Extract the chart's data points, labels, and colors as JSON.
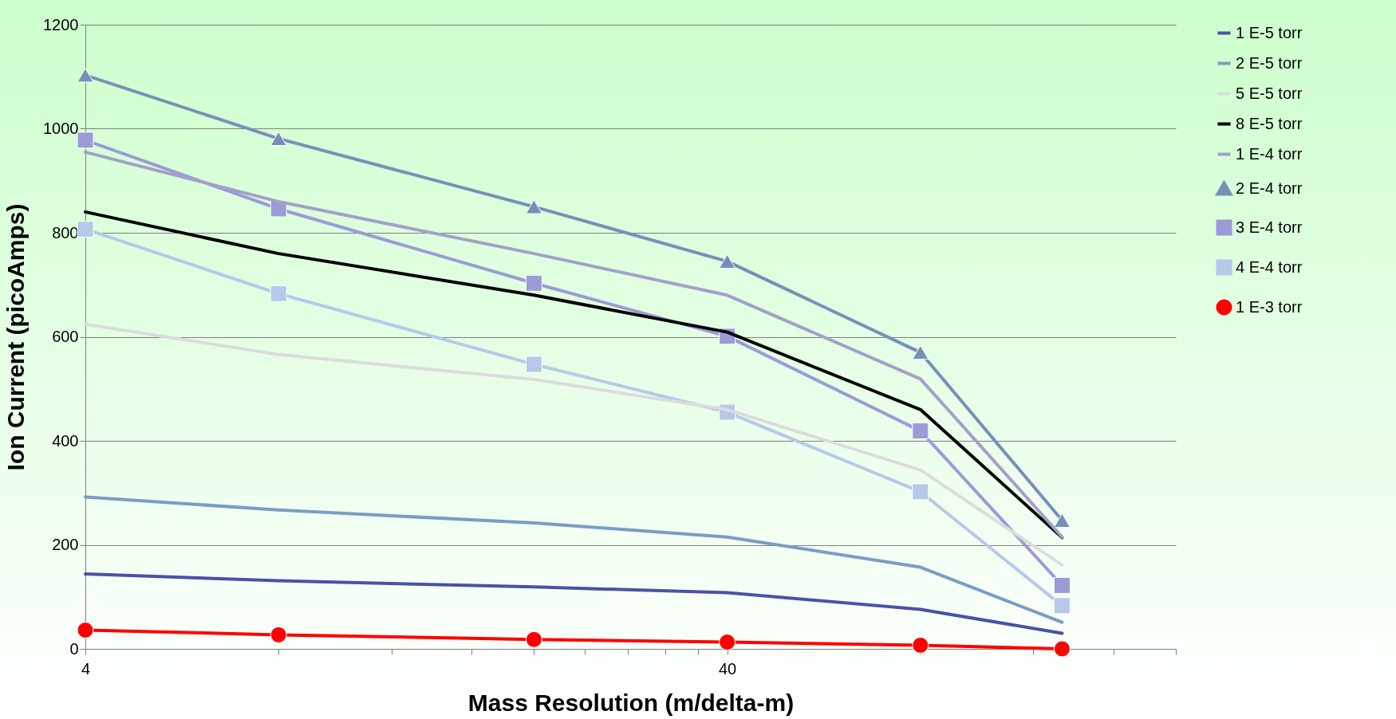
{
  "chart_data": {
    "type": "line",
    "xlabel": "Mass Resolution (m/delta-m)",
    "ylabel": "Ion Current (picoAmps)",
    "x": [
      4,
      8,
      20,
      40,
      80,
      133
    ],
    "xlim": [
      4,
      200
    ],
    "xticks": [
      4,
      {
        "value": 8,
        "label": null
      },
      {
        "value": 12,
        "label": null
      },
      {
        "value": 16,
        "label": null
      },
      {
        "value": 20,
        "label": null
      },
      {
        "value": 24,
        "label": null
      },
      {
        "value": 28,
        "label": null
      },
      {
        "value": 32,
        "label": null
      },
      {
        "value": 36,
        "label": null
      },
      40,
      {
        "value": 80,
        "label": null
      },
      {
        "value": 120,
        "label": null
      },
      {
        "value": 160,
        "label": null
      },
      {
        "value": 200,
        "label": null
      }
    ],
    "ylim": [
      0,
      1200
    ],
    "yticks": [
      0,
      200,
      400,
      600,
      800,
      1000,
      1200
    ],
    "log": "x",
    "grid": "y",
    "legend": "right",
    "line_style": "solid",
    "series": [
      {
        "name": "1 E-5 torr",
        "color": "#4a51a8",
        "marker": "none",
        "values": [
          144,
          131,
          119,
          108,
          76,
          30
        ]
      },
      {
        "name": "2 E-5 torr",
        "color": "#7a9cc6",
        "marker": "none",
        "values": [
          292,
          267,
          242,
          215,
          157,
          51
        ]
      },
      {
        "name": "5 E-5 torr",
        "color": "#dcdcdc",
        "marker": "none",
        "values": [
          624,
          566,
          518,
          460,
          344,
          161
        ]
      },
      {
        "name": "8 E-5 torr",
        "color": "#000000",
        "marker": "none",
        "values": [
          840,
          760,
          680,
          609,
          460,
          214
        ]
      },
      {
        "name": "1 E-4 torr",
        "color": "#a3a0c8",
        "marker": "none",
        "values": [
          955,
          860,
          760,
          680,
          519,
          215
        ]
      },
      {
        "name": "2 E-4 torr",
        "color": "#7590b8",
        "marker": "triangle",
        "values": [
          1103,
          981,
          850,
          745,
          570,
          247
        ]
      },
      {
        "name": "3 E-4 torr",
        "color": "#9b9bd6",
        "marker": "square",
        "values": [
          978,
          846,
          703,
          601,
          419,
          122
        ]
      },
      {
        "name": "4 E-4 torr",
        "color": "#b6c9e8",
        "marker": "square",
        "values": [
          807,
          683,
          547,
          455,
          302,
          83
        ]
      },
      {
        "name": "1 E-3 torr",
        "color": "#ff0000",
        "marker": "circle",
        "values": [
          36,
          27,
          18,
          13,
          7,
          0
        ]
      }
    ]
  }
}
